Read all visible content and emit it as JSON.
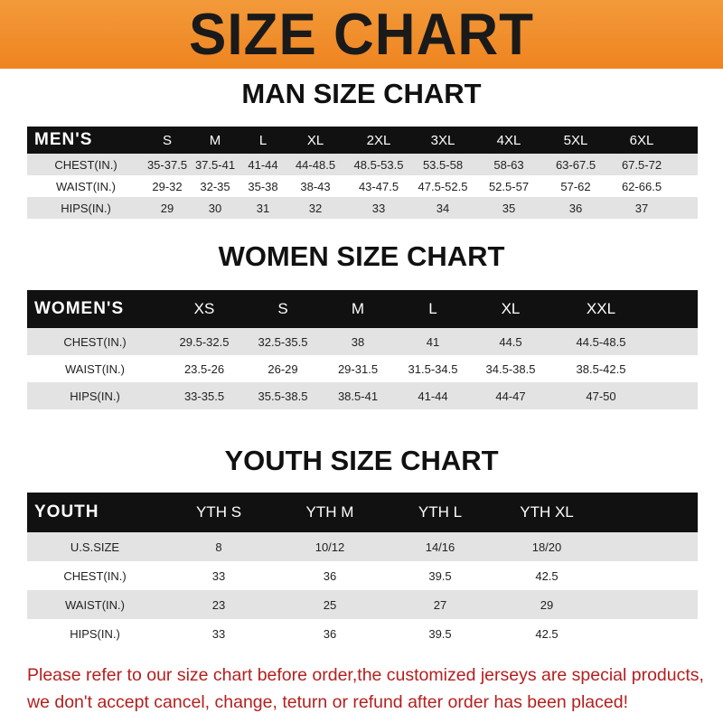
{
  "title": "SIZE CHART",
  "colors": {
    "banner": "#ee8420",
    "header_row": "#111111",
    "note": "#b3201f"
  },
  "men": {
    "title": "MAN SIZE CHART",
    "header": "MEN'S",
    "sizes": [
      "S",
      "M",
      "L",
      "XL",
      "2XL",
      "3XL",
      "4XL",
      "5XL",
      "6XL"
    ],
    "rows": [
      {
        "label": "CHEST(IN.)",
        "values": [
          "35-37.5",
          "37.5-41",
          "41-44",
          "44-48.5",
          "48.5-53.5",
          "53.5-58",
          "58-63",
          "63-67.5",
          "67.5-72"
        ]
      },
      {
        "label": "WAIST(IN.)",
        "values": [
          "29-32",
          "32-35",
          "35-38",
          "38-43",
          "43-47.5",
          "47.5-52.5",
          "52.5-57",
          "57-62",
          "62-66.5"
        ]
      },
      {
        "label": "HIPS(IN.)",
        "values": [
          "29",
          "30",
          "31",
          "32",
          "33",
          "34",
          "35",
          "36",
          "37"
        ]
      }
    ]
  },
  "women": {
    "title": "WOMEN SIZE CHART",
    "header": "WOMEN'S",
    "sizes": [
      "XS",
      "S",
      "M",
      "L",
      "XL",
      "XXL"
    ],
    "rows": [
      {
        "label": "CHEST(IN.)",
        "values": [
          "29.5-32.5",
          "32.5-35.5",
          "38",
          "41",
          "44.5",
          "44.5-48.5"
        ]
      },
      {
        "label": "WAIST(IN.)",
        "values": [
          "23.5-26",
          "26-29",
          "29-31.5",
          "31.5-34.5",
          "34.5-38.5",
          "38.5-42.5"
        ]
      },
      {
        "label": "HIPS(IN.)",
        "values": [
          "33-35.5",
          "35.5-38.5",
          "38.5-41",
          "41-44",
          "44-47",
          "47-50"
        ]
      }
    ]
  },
  "youth": {
    "title": "YOUTH SIZE CHART",
    "header": "YOUTH",
    "sizes": [
      "YTH S",
      "YTH M",
      "YTH L",
      "YTH XL"
    ],
    "rows": [
      {
        "label": "U.S.SIZE",
        "values": [
          "8",
          "10/12",
          "14/16",
          "18/20"
        ]
      },
      {
        "label": "CHEST(IN.)",
        "values": [
          "33",
          "36",
          "39.5",
          "42.5"
        ]
      },
      {
        "label": "WAIST(IN.)",
        "values": [
          "23",
          "25",
          "27",
          "29"
        ]
      },
      {
        "label": "HIPS(IN.)",
        "values": [
          "33",
          "36",
          "39.5",
          "42.5"
        ]
      }
    ]
  },
  "note": {
    "line1": "Please refer to our size chart before order,the customized jerseys are special products,",
    "line2": "we don't accept cancel, change, teturn or refund after order has been placed!"
  }
}
